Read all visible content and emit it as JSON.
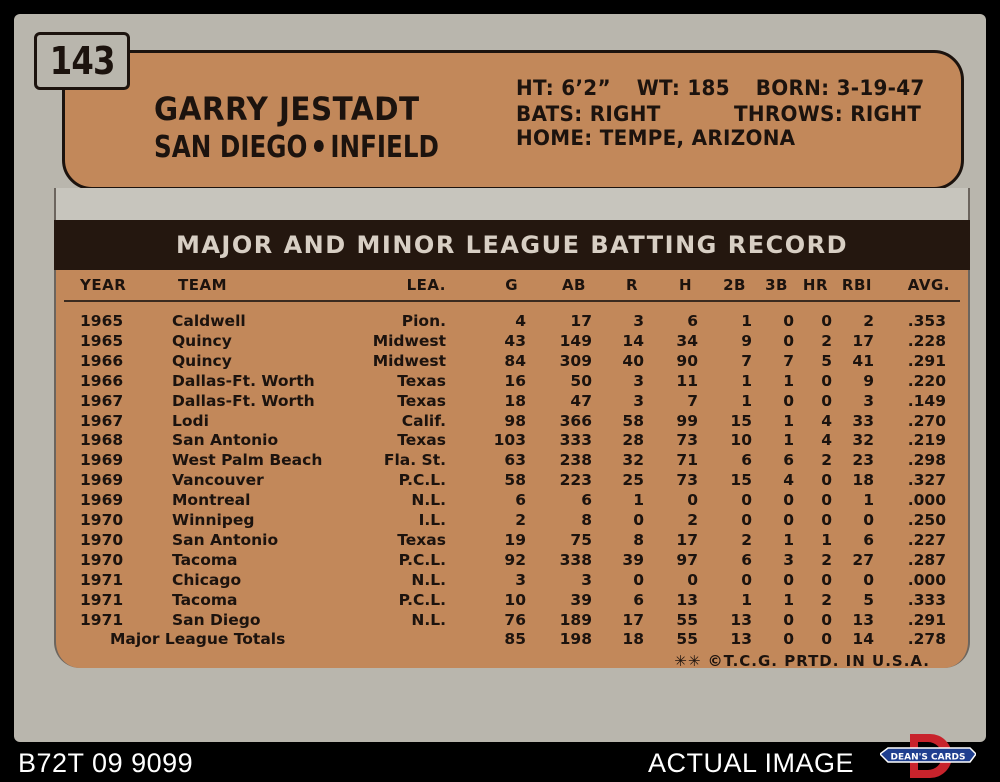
{
  "card": {
    "number": "143",
    "player_name": "GARRY JESTADT",
    "team": "SAN DIEGO",
    "position": "INFIELD",
    "bio": {
      "line1": {
        "ht": "HT: 6’2”",
        "wt": "WT: 185",
        "born": "BORN: 3-19-47"
      },
      "line2": {
        "bats": "BATS: RIGHT",
        "throws": "THROWS: RIGHT"
      },
      "line3": "HOME: TEMPE, ARIZONA"
    },
    "stats_title": "MAJOR AND MINOR LEAGUE BATTING RECORD",
    "columns": [
      "YEAR",
      "TEAM",
      "LEA.",
      "G",
      "AB",
      "R",
      "H",
      "2B",
      "3B",
      "HR",
      "RBI",
      "AVG."
    ],
    "rows": [
      [
        "1965",
        "Caldwell",
        "Pion.",
        "4",
        "17",
        "3",
        "6",
        "1",
        "0",
        "0",
        "2",
        ".353"
      ],
      [
        "1965",
        "Quincy",
        "Midwest",
        "43",
        "149",
        "14",
        "34",
        "9",
        "0",
        "2",
        "17",
        ".228"
      ],
      [
        "1966",
        "Quincy",
        "Midwest",
        "84",
        "309",
        "40",
        "90",
        "7",
        "7",
        "5",
        "41",
        ".291"
      ],
      [
        "1966",
        "Dallas-Ft. Worth",
        "Texas",
        "16",
        "50",
        "3",
        "11",
        "1",
        "1",
        "0",
        "9",
        ".220"
      ],
      [
        "1967",
        "Dallas-Ft. Worth",
        "Texas",
        "18",
        "47",
        "3",
        "7",
        "1",
        "0",
        "0",
        "3",
        ".149"
      ],
      [
        "1967",
        "Lodi",
        "Calif.",
        "98",
        "366",
        "58",
        "99",
        "15",
        "1",
        "4",
        "33",
        ".270"
      ],
      [
        "1968",
        "San Antonio",
        "Texas",
        "103",
        "333",
        "28",
        "73",
        "10",
        "1",
        "4",
        "32",
        ".219"
      ],
      [
        "1969",
        "West Palm Beach",
        "Fla. St.",
        "63",
        "238",
        "32",
        "71",
        "6",
        "6",
        "2",
        "23",
        ".298"
      ],
      [
        "1969",
        "Vancouver",
        "P.C.L.",
        "58",
        "223",
        "25",
        "73",
        "15",
        "4",
        "0",
        "18",
        ".327"
      ],
      [
        "1969",
        "Montreal",
        "N.L.",
        "6",
        "6",
        "1",
        "0",
        "0",
        "0",
        "0",
        "1",
        ".000"
      ],
      [
        "1970",
        "Winnipeg",
        "I.L.",
        "2",
        "8",
        "0",
        "2",
        "0",
        "0",
        "0",
        "0",
        ".250"
      ],
      [
        "1970",
        "San Antonio",
        "Texas",
        "19",
        "75",
        "8",
        "17",
        "2",
        "1",
        "1",
        "6",
        ".227"
      ],
      [
        "1970",
        "Tacoma",
        "P.C.L.",
        "92",
        "338",
        "39",
        "97",
        "6",
        "3",
        "2",
        "27",
        ".287"
      ],
      [
        "1971",
        "Chicago",
        "N.L.",
        "3",
        "3",
        "0",
        "0",
        "0",
        "0",
        "0",
        "0",
        ".000"
      ],
      [
        "1971",
        "Tacoma",
        "P.C.L.",
        "10",
        "39",
        "6",
        "13",
        "1",
        "1",
        "2",
        "5",
        ".333"
      ],
      [
        "1971",
        "San Diego",
        "N.L.",
        "76",
        "189",
        "17",
        "55",
        "13",
        "0",
        "0",
        "13",
        ".291"
      ]
    ],
    "totals": {
      "label": "Major League Totals",
      "values": [
        "85",
        "198",
        "18",
        "55",
        "13",
        "0",
        "0",
        "14",
        ".278"
      ]
    },
    "printed": "✳✳ ©T.C.G. PRTD. IN U.S.A."
  },
  "footer": {
    "cert_id": "B72T 09 9099",
    "label": "ACTUAL IMAGE",
    "logo_text": "DEAN'S CARDS",
    "colors": {
      "logo_red": "#c8232c",
      "logo_blue": "#1f3f8f"
    }
  }
}
